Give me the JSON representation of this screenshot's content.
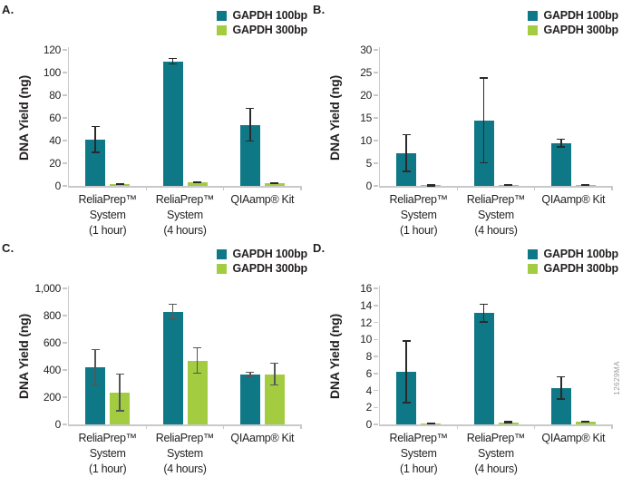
{
  "figure": {
    "watermark": "12629MA",
    "colors": {
      "series1": "#0e7887",
      "series2": "#a3cc40",
      "axis": "#c8c9cb",
      "text": "#231f20",
      "watermark_gray": "#9b9b9b"
    }
  },
  "chart_data": [
    {
      "type": "bar",
      "panel": "A.",
      "ylabel": "DNA Yield (ng)",
      "ylim": [
        0,
        120
      ],
      "yticks": [
        "0",
        "20",
        "40",
        "60",
        "80",
        "100",
        "120"
      ],
      "grid": false,
      "legend_position": "top-right",
      "error_color": "#2a2a2c",
      "categories": [
        [
          "ReliaPrep™",
          "System",
          "(1 hour)"
        ],
        [
          "ReliaPrep™",
          "System",
          "(4 hours)"
        ],
        [
          "QIAamp® Kit"
        ]
      ],
      "series": [
        {
          "name": "GAPDH 100bp",
          "values": [
            41,
            110,
            54
          ],
          "errors": [
            12,
            3,
            15
          ]
        },
        {
          "name": "GAPDH 300bp",
          "values": [
            1.5,
            3.5,
            2.5
          ],
          "errors": [
            0.8,
            0.5,
            0.8
          ]
        }
      ]
    },
    {
      "type": "bar",
      "panel": "B.",
      "ylabel": "DNA Yield (ng)",
      "ylim": [
        0,
        30
      ],
      "yticks": [
        "0",
        "5",
        "10",
        "15",
        "20",
        "25",
        "30"
      ],
      "grid": false,
      "legend_position": "top-right",
      "error_color": "#2a2a2c",
      "categories": [
        [
          "ReliaPrep™",
          "System",
          "(1 hour)"
        ],
        [
          "ReliaPrep™",
          "System",
          "(4 hours)"
        ],
        [
          "QIAamp® Kit"
        ]
      ],
      "series": [
        {
          "name": "GAPDH 100bp",
          "values": [
            7.3,
            14.5,
            9.5
          ],
          "errors": [
            4.2,
            9.5,
            1.0
          ]
        },
        {
          "name": "GAPDH 300bp",
          "values": [
            0.1,
            0.2,
            0.2
          ],
          "errors": [
            0.05,
            0.1,
            0.1
          ]
        }
      ]
    },
    {
      "type": "bar",
      "panel": "C.",
      "ylabel": "DNA Yield (ng)",
      "ylim": [
        0,
        1000
      ],
      "yticks": [
        "0",
        "200",
        "400",
        "600",
        "800",
        "1,000"
      ],
      "grid": false,
      "legend_position": "top-right",
      "error_color": "#55565a",
      "categories": [
        [
          "ReliaPrep™",
          "System",
          "(1 hour)"
        ],
        [
          "ReliaPrep™",
          "System",
          "(4 hours)"
        ],
        [
          "QIAamp® Kit"
        ]
      ],
      "series": [
        {
          "name": "GAPDH 100bp",
          "values": [
            420,
            830,
            370
          ],
          "errors": [
            135,
            60,
            20
          ]
        },
        {
          "name": "GAPDH 300bp",
          "values": [
            235,
            470,
            370
          ],
          "errors": [
            140,
            97,
            85
          ]
        }
      ]
    },
    {
      "type": "bar",
      "panel": "D.",
      "ylabel": "DNA Yield (ng)",
      "ylim": [
        0,
        16
      ],
      "yticks": [
        "0",
        "2",
        "4",
        "6",
        "8",
        "10",
        "12",
        "14",
        "16"
      ],
      "grid": false,
      "legend_position": "top-right",
      "error_color": "#2a2a2c",
      "categories": [
        [
          "ReliaPrep™",
          "System",
          "(1 hour)"
        ],
        [
          "ReliaPrep™",
          "System",
          "(4 hours)"
        ],
        [
          "QIAamp® Kit"
        ]
      ],
      "series": [
        {
          "name": "GAPDH 100bp",
          "values": [
            6.2,
            13.1,
            4.3
          ],
          "errors": [
            3.7,
            1.1,
            1.4
          ]
        },
        {
          "name": "GAPDH 300bp",
          "values": [
            0.1,
            0.25,
            0.3
          ],
          "errors": [
            0.05,
            0.15,
            0.08
          ]
        }
      ]
    }
  ]
}
